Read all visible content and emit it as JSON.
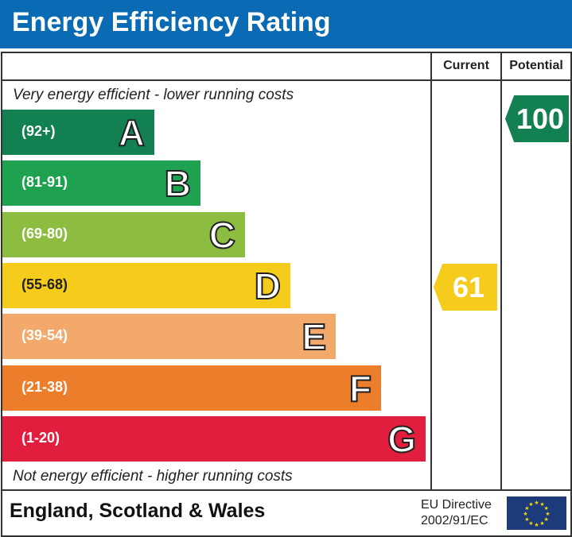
{
  "header": {
    "title": "Energy Efficiency Rating"
  },
  "columns": {
    "current": "Current",
    "potential": "Potential"
  },
  "notes": {
    "top": "Very energy efficient - lower running costs",
    "bottom": "Not energy efficient - higher running costs"
  },
  "chart_data": {
    "type": "bar",
    "categories": [
      "A",
      "B",
      "C",
      "D",
      "E",
      "F",
      "G"
    ],
    "ranges": [
      "(92+)",
      "(81-91)",
      "(69-80)",
      "(55-68)",
      "(39-54)",
      "(21-38)",
      "(1-20)"
    ],
    "colors": [
      "#128050",
      "#1ea24f",
      "#8dbd40",
      "#f5cb1c",
      "#f2a96b",
      "#ec7d2a",
      "#e11e3d"
    ],
    "current": {
      "value": "61",
      "band": "D",
      "color": "#f5cb1c"
    },
    "potential": {
      "value": "100",
      "band": "A",
      "color": "#128050"
    }
  },
  "footer": {
    "region": "England, Scotland & Wales",
    "directive_line1": "EU Directive",
    "directive_line2": "2002/91/EC"
  }
}
